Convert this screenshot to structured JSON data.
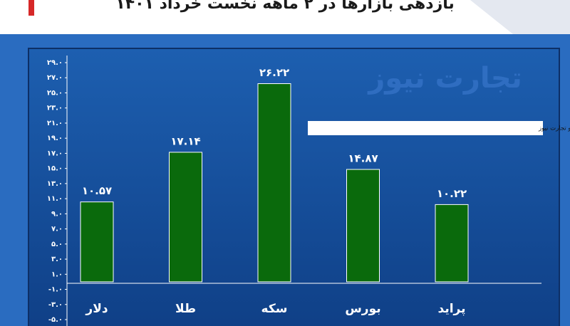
{
  "chart_data": {
    "type": "bar",
    "title": "بازدهی بازارها در ۲ ماهه نخست خرداد ۱۴۰۱",
    "watermark": "تجارت نیوز",
    "source": "منبع: صرافی ملی، اتحادیه طلا، سازمان بورس و باشگاه خبرنگاران و تجارت نیوز",
    "categories": [
      "دلار",
      "طلا",
      "سکه",
      "بورس",
      "پراید"
    ],
    "values": [
      10.57,
      17.14,
      26.22,
      14.87,
      10.22
    ],
    "value_labels": [
      "۱۰.۵۷",
      "۱۷.۱۴",
      "۲۶.۲۲",
      "۱۴.۸۷",
      "۱۰.۲۲"
    ],
    "color": "#0a6a0c",
    "ylim": [
      -5,
      29
    ],
    "yticks": [
      {
        "value": 29,
        "label": "۲۹.۰"
      },
      {
        "value": 27,
        "label": "۲۷.۰"
      },
      {
        "value": 25,
        "label": "۲۵.۰"
      },
      {
        "value": 23,
        "label": "۲۳.۰"
      },
      {
        "value": 21,
        "label": "۲۱.۰"
      },
      {
        "value": 19,
        "label": "۱۹.۰"
      },
      {
        "value": 17,
        "label": "۱۷.۰"
      },
      {
        "value": 15,
        "label": "۱۵.۰"
      },
      {
        "value": 13,
        "label": "۱۳.۰"
      },
      {
        "value": 11,
        "label": "۱۱.۰"
      },
      {
        "value": 9,
        "label": "۹.۰"
      },
      {
        "value": 7,
        "label": "۷.۰"
      },
      {
        "value": 5,
        "label": "۵.۰"
      },
      {
        "value": 3,
        "label": "۳.۰"
      },
      {
        "value": 1,
        "label": "۱.۰"
      },
      {
        "value": -1,
        "label": "-۱.۰"
      },
      {
        "value": -3,
        "label": "-۳.۰"
      },
      {
        "value": -5,
        "label": "-۵.۰"
      }
    ]
  }
}
